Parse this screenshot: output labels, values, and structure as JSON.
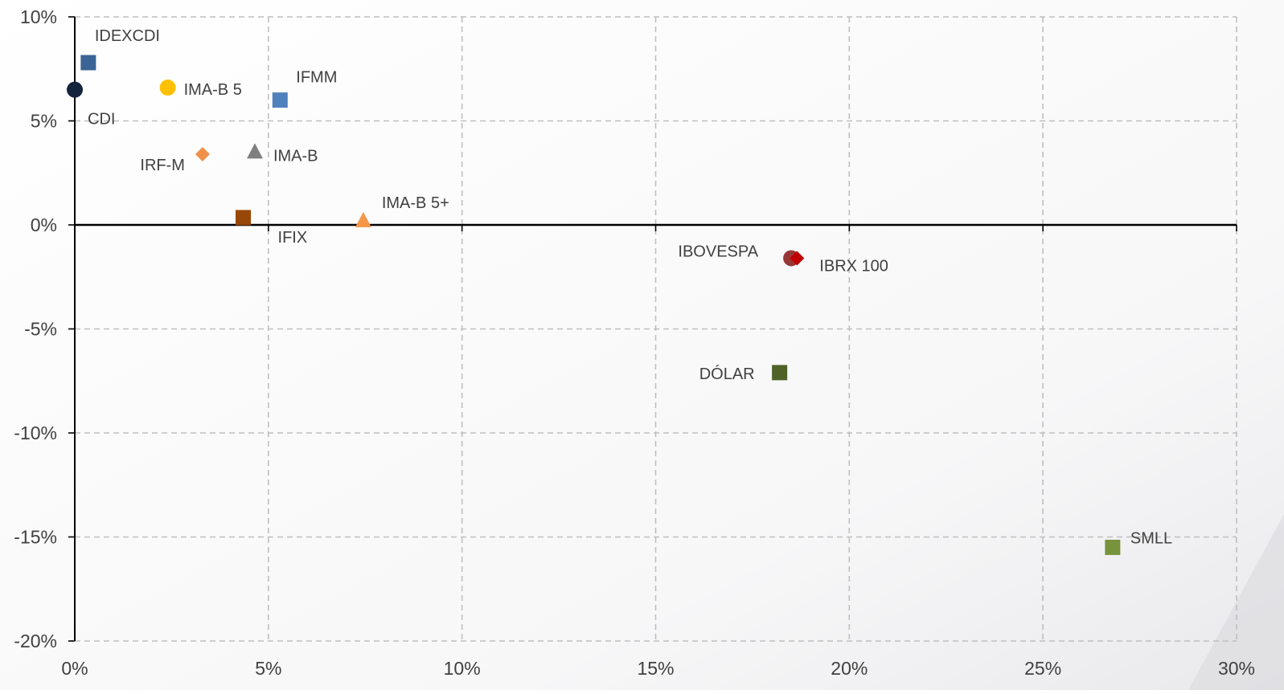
{
  "chart_data": {
    "type": "scatter",
    "title": "",
    "xlabel": "",
    "ylabel": "",
    "xlim": [
      0,
      30
    ],
    "ylim": [
      -20,
      10
    ],
    "x_ticks": [
      0,
      5,
      10,
      15,
      20,
      25,
      30
    ],
    "y_ticks": [
      -20,
      -15,
      -10,
      -5,
      0,
      5,
      10
    ],
    "x_tick_labels": [
      "0%",
      "5%",
      "10%",
      "15%",
      "20%",
      "25%",
      "30%"
    ],
    "y_tick_labels": [
      "-20%",
      "-15%",
      "-10%",
      "-5%",
      "0%",
      "5%",
      "10%"
    ],
    "grid": true,
    "grid_style": "dashed",
    "legend": "none",
    "points": [
      {
        "label": "IDEXCDI",
        "x": 0.35,
        "y": 7.8,
        "marker": "square",
        "color": "#3A6496",
        "label_pos": "above-right"
      },
      {
        "label": "CDI",
        "x": 0.0,
        "y": 6.5,
        "marker": "circle",
        "color": "#14243D",
        "label_pos": "below-right"
      },
      {
        "label": "IMA-B 5",
        "x": 2.4,
        "y": 6.6,
        "marker": "circle",
        "color": "#FFC000",
        "label_pos": "right"
      },
      {
        "label": "IFMM",
        "x": 5.3,
        "y": 6.0,
        "marker": "square",
        "color": "#4F81BD",
        "label_pos": "above-right"
      },
      {
        "label": "IRF-M",
        "x": 3.3,
        "y": 3.4,
        "marker": "diamond",
        "color": "#F0904A",
        "label_pos": "below-left"
      },
      {
        "label": "IMA-B",
        "x": 4.65,
        "y": 3.5,
        "marker": "triangle",
        "color": "#7F7F7F",
        "label_pos": "right"
      },
      {
        "label": "IFIX",
        "x": 4.35,
        "y": 0.35,
        "marker": "square",
        "color": "#974706",
        "label_pos": "below-right"
      },
      {
        "label": "IMA-B 5+",
        "x": 7.45,
        "y": 0.2,
        "marker": "triangle",
        "color": "#F79646",
        "label_pos": "above-right"
      },
      {
        "label": "IBOVESPA",
        "x": 18.5,
        "y": -1.6,
        "marker": "circle",
        "color": "#953735",
        "label_pos": "above-left"
      },
      {
        "label": "IBRX 100",
        "x": 18.65,
        "y": -1.6,
        "marker": "diamond",
        "color": "#C00000",
        "label_pos": "below-right"
      },
      {
        "label": "DÓLAR",
        "x": 18.2,
        "y": -7.1,
        "marker": "square",
        "color": "#4F6228",
        "label_pos": "left"
      },
      {
        "label": "SMLL",
        "x": 26.8,
        "y": -15.5,
        "marker": "square",
        "color": "#77933C",
        "label_pos": "above-right"
      }
    ]
  }
}
